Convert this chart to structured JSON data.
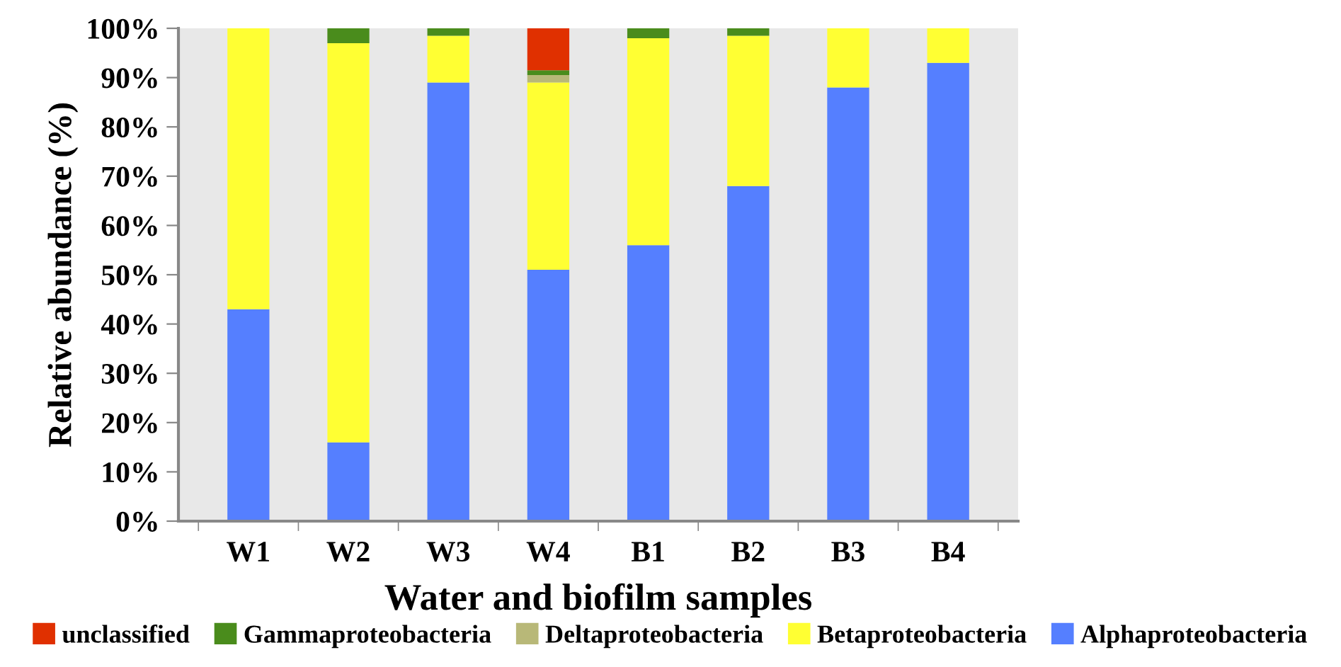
{
  "chart_data": {
    "type": "bar",
    "stacked": true,
    "xlabel": "Water and biofilm samples",
    "ylabel": "Relative abundance (%)",
    "categories": [
      "W1",
      "W2",
      "W3",
      "W4",
      "B1",
      "B2",
      "B3",
      "B4"
    ],
    "series": [
      {
        "name": "Alphaproteobacteria",
        "color": "#557fff",
        "values": [
          43,
          16,
          89,
          51,
          56,
          68,
          88,
          93
        ]
      },
      {
        "name": "Betaproteobacteria",
        "color": "#ffff33",
        "values": [
          57,
          81,
          9.5,
          38,
          42,
          30.5,
          12,
          7
        ]
      },
      {
        "name": "Deltaproteobacteria",
        "color": "#b8b878",
        "values": [
          0,
          0,
          0,
          1.5,
          0,
          0,
          0,
          0
        ]
      },
      {
        "name": "Gammaproteobacteria",
        "color": "#4a8c1c",
        "values": [
          0,
          3,
          1.5,
          1,
          2,
          1.5,
          0,
          0
        ]
      },
      {
        "name": "unclassified",
        "color": "#e03000",
        "values": [
          0,
          0,
          0,
          8.5,
          0,
          0,
          0,
          0
        ]
      }
    ],
    "ylim": [
      0,
      100
    ],
    "yticks": [
      {
        "value": 0,
        "label": "0%"
      },
      {
        "value": 10,
        "label": "10%"
      },
      {
        "value": 20,
        "label": "20%"
      },
      {
        "value": 30,
        "label": "30%"
      },
      {
        "value": 40,
        "label": "40%"
      },
      {
        "value": 50,
        "label": "50%"
      },
      {
        "value": 60,
        "label": "60%"
      },
      {
        "value": 70,
        "label": "70%"
      },
      {
        "value": 80,
        "label": "80%"
      },
      {
        "value": 90,
        "label": "90%"
      },
      {
        "value": 100,
        "label": "100%"
      }
    ],
    "grid": false,
    "legend": "bottom"
  }
}
